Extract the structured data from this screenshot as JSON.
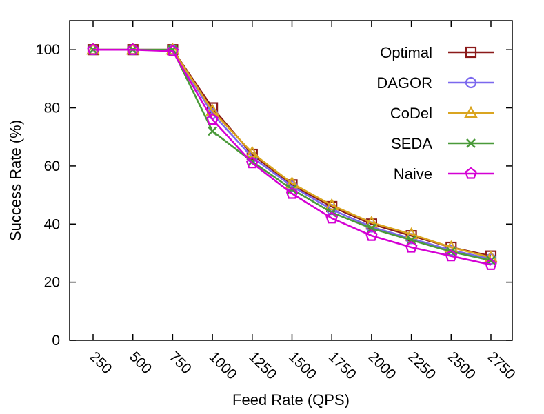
{
  "chart_data": {
    "type": "line",
    "xlabel": "Feed Rate (QPS)",
    "ylabel": "Success Rate (%)",
    "ylim": [
      0,
      110
    ],
    "yticks": [
      0,
      20,
      40,
      60,
      80,
      100
    ],
    "categories": [
      "250",
      "500",
      "750",
      "1000",
      "1250",
      "1500",
      "1750",
      "2000",
      "2250",
      "2500",
      "2750"
    ],
    "legend_position": "top-right",
    "grid": false,
    "series": [
      {
        "name": "Optimal",
        "color": "#8b1a1a",
        "marker": "square",
        "values": [
          100,
          100,
          100,
          80,
          64,
          53.5,
          46,
          40,
          36,
          32,
          29
        ]
      },
      {
        "name": "DAGOR",
        "color": "#7b68ee",
        "marker": "circle",
        "values": [
          100,
          100,
          100,
          78,
          63,
          53,
          45,
          39,
          35,
          31,
          28
        ]
      },
      {
        "name": "CoDel",
        "color": "#daa520",
        "marker": "triangle",
        "values": [
          100,
          100,
          100,
          79,
          64.5,
          54,
          46.5,
          40.5,
          36.5,
          32,
          28.5
        ]
      },
      {
        "name": "SEDA",
        "color": "#4a9a3a",
        "marker": "x",
        "values": [
          100,
          100,
          100,
          72,
          61.5,
          52,
          44,
          38.5,
          34.5,
          30.5,
          27.5
        ]
      },
      {
        "name": "Naive",
        "color": "#d400d4",
        "marker": "pentagon",
        "values": [
          100,
          100,
          99.5,
          76,
          61,
          50.5,
          42,
          36,
          32,
          29,
          26
        ]
      }
    ]
  }
}
